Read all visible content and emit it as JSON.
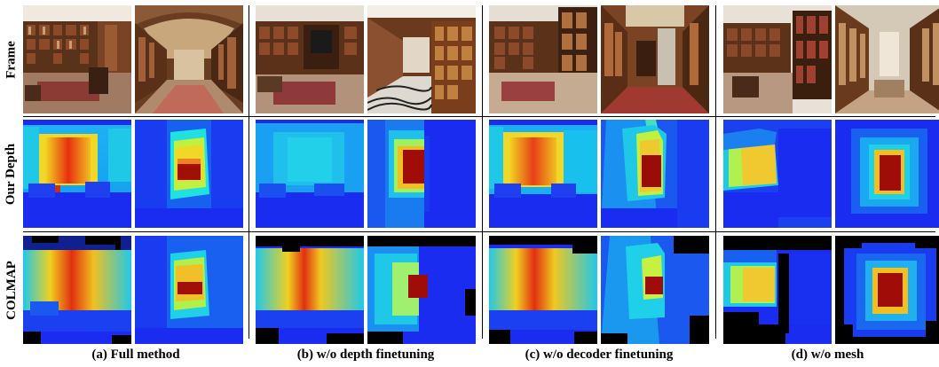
{
  "rows": {
    "frame": "Frame",
    "our_depth": "Our Depth",
    "colmap": "COLMAP"
  },
  "captions": {
    "a": "(a) Full method",
    "b": "(b) w/o depth finetuning",
    "c": "(c) w/o decoder finetuning",
    "d": "(d) w/o mesh"
  },
  "colors": {
    "depth_far": "#1a2cf0",
    "depth_mid": "#18b8f0",
    "depth_near": "#e8e020",
    "depth_nearest": "#b01010",
    "wood": "#6b3a1c",
    "floor": "#b9957a"
  }
}
